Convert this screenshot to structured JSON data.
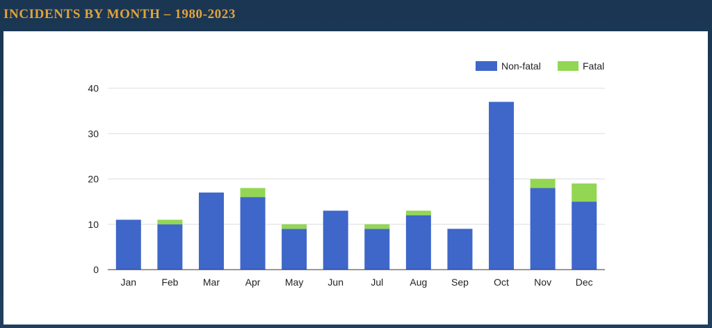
{
  "header": {
    "title": "INCIDENTS BY MONTH – 1980-2023"
  },
  "colors": {
    "header_bg": "#1d3b58",
    "title": "#e2a33b",
    "non_fatal": "#3f66c9",
    "fatal": "#93d654",
    "grid": "#dcdcdc",
    "axis": "#333333"
  },
  "chart_data": {
    "type": "bar",
    "stacked": true,
    "categories": [
      "Jan",
      "Feb",
      "Mar",
      "Apr",
      "May",
      "Jun",
      "Jul",
      "Aug",
      "Sep",
      "Oct",
      "Nov",
      "Dec"
    ],
    "series": [
      {
        "name": "Non-fatal",
        "values": [
          11,
          10,
          17,
          16,
          9,
          13,
          9,
          12,
          9,
          37,
          18,
          15
        ]
      },
      {
        "name": "Fatal",
        "values": [
          0,
          1,
          0,
          2,
          1,
          0,
          1,
          1,
          0,
          0,
          2,
          4
        ]
      }
    ],
    "title": "",
    "xlabel": "",
    "ylabel": "",
    "ylim": [
      0,
      40
    ],
    "yticks": [
      0,
      10,
      20,
      30,
      40
    ],
    "grid": true,
    "legend": "top-right"
  }
}
